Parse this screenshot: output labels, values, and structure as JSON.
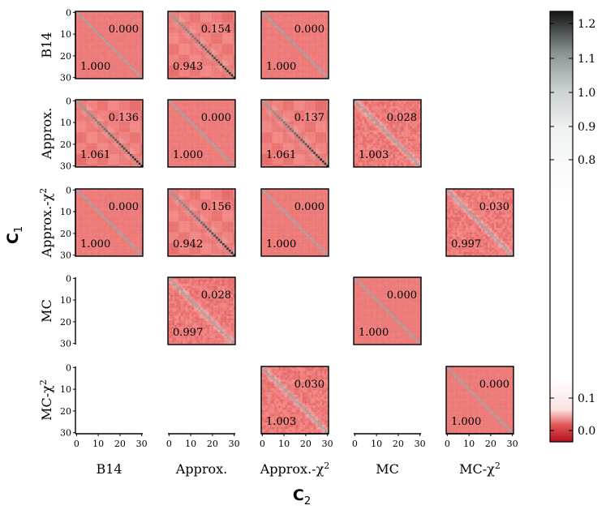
{
  "chart_data": {
    "type": "heatmap",
    "title": "",
    "xlabel_main": "C",
    "xlabel_sub": "2",
    "ylabel_main": "C",
    "ylabel_sub": "1",
    "row_labels": [
      {
        "text": "B14",
        "sup": ""
      },
      {
        "text": "Approx.",
        "sup": ""
      },
      {
        "text": "Approx.-χ",
        "sup": "2"
      },
      {
        "text": "MC",
        "sup": ""
      },
      {
        "text": "MC-χ",
        "sup": "2"
      }
    ],
    "col_labels": [
      {
        "text": "B14",
        "sup": ""
      },
      {
        "text": "Approx.",
        "sup": ""
      },
      {
        "text": "Approx.-χ",
        "sup": "2"
      },
      {
        "text": "MC",
        "sup": ""
      },
      {
        "text": "MC-χ",
        "sup": "2"
      }
    ],
    "matrix_size": 31,
    "axis_ticks": [
      "0",
      "10",
      "20",
      "30"
    ],
    "tick_values": [
      0,
      10,
      20,
      30
    ],
    "panels": [
      {
        "row": 0,
        "col": 0,
        "upper": "0.000",
        "lower": "1.000",
        "pattern": "smooth"
      },
      {
        "row": 0,
        "col": 1,
        "upper": "0.154",
        "lower": "0.943",
        "pattern": "blocky"
      },
      {
        "row": 0,
        "col": 2,
        "upper": "0.000",
        "lower": "1.000",
        "pattern": "smooth"
      },
      {
        "row": 1,
        "col": 0,
        "upper": "0.136",
        "lower": "1.061",
        "pattern": "blocky"
      },
      {
        "row": 1,
        "col": 1,
        "upper": "0.000",
        "lower": "1.000",
        "pattern": "smooth"
      },
      {
        "row": 1,
        "col": 2,
        "upper": "0.137",
        "lower": "1.061",
        "pattern": "blocky"
      },
      {
        "row": 1,
        "col": 3,
        "upper": "0.028",
        "lower": "1.003",
        "pattern": "noisy"
      },
      {
        "row": 2,
        "col": 0,
        "upper": "0.000",
        "lower": "1.000",
        "pattern": "smooth"
      },
      {
        "row": 2,
        "col": 1,
        "upper": "0.156",
        "lower": "0.942",
        "pattern": "blocky"
      },
      {
        "row": 2,
        "col": 2,
        "upper": "0.000",
        "lower": "1.000",
        "pattern": "smooth"
      },
      {
        "row": 2,
        "col": 4,
        "upper": "0.030",
        "lower": "0.997",
        "pattern": "noisy"
      },
      {
        "row": 3,
        "col": 1,
        "upper": "0.028",
        "lower": "0.997",
        "pattern": "noisy"
      },
      {
        "row": 3,
        "col": 3,
        "upper": "0.000",
        "lower": "1.000",
        "pattern": "smooth"
      },
      {
        "row": 4,
        "col": 2,
        "upper": "0.030",
        "lower": "1.003",
        "pattern": "noisy"
      },
      {
        "row": 4,
        "col": 4,
        "upper": "0.000",
        "lower": "1.000",
        "pattern": "smooth"
      }
    ],
    "colorbar": {
      "ticks": [
        {
          "value": 0.0,
          "label": "0.0"
        },
        {
          "value": 0.1,
          "label": "0.1"
        },
        {
          "value": 0.8,
          "label": "0.8"
        },
        {
          "value": 0.9,
          "label": "0.9"
        },
        {
          "value": 1.0,
          "label": "1.0"
        },
        {
          "value": 1.1,
          "label": "1.1"
        },
        {
          "value": 1.2,
          "label": "1.2"
        }
      ],
      "range": [
        -0.05,
        1.22
      ],
      "low_color": "#b2182b",
      "mid_color": "#fdf0f0",
      "high_color": "#1a1a1a"
    },
    "colors": {
      "base": "#ee7f7c",
      "diagonal": "#9aa7a7",
      "frame": "#000000"
    }
  }
}
